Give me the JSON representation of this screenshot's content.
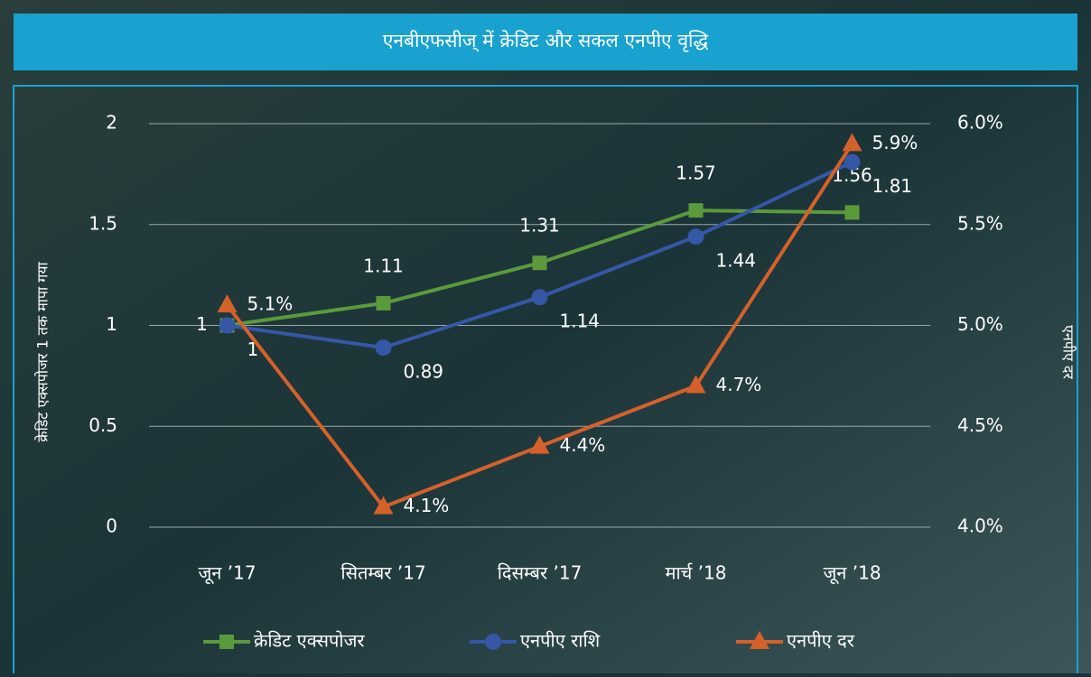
{
  "chart_data": {
    "type": "line",
    "title": "एनबीएफसीज् में क्रेडिट और सकल एनपीए वृद्धि",
    "y_label": "क्रेडिट एक्सपोजर 1 तक मापा गया",
    "y2_label": "एनपीए दर",
    "categories": [
      "जून ’17",
      "सितम्बर ’17",
      "दिसम्बर ’17",
      "मार्च ’18",
      "जून ’18"
    ],
    "series": [
      {
        "name": "क्रेडिट एक्सपोजर",
        "color": "#5b9a3b",
        "marker": "square",
        "values": [
          1,
          1.11,
          1.31,
          1.57,
          1.56
        ]
      },
      {
        "name": "एनपीए राशि",
        "color": "#3557a6",
        "marker": "circle",
        "values": [
          1,
          0.89,
          1.14,
          1.44,
          1.81
        ]
      },
      {
        "name": "एनपीए दर",
        "color": "#d5612a",
        "marker": "triangle",
        "axis": "y2",
        "values": [
          5.1,
          4.1,
          4.4,
          4.7,
          5.9
        ],
        "value_labels": [
          "5.1%",
          "4.1%",
          "4.4%",
          "4.7%",
          "5.9%"
        ]
      }
    ],
    "ylim": [
      0,
      2
    ],
    "yticks": [
      0,
      0.5,
      1,
      1.5,
      2
    ],
    "y2lim": [
      4,
      6
    ],
    "y2ticks": [
      {
        "value": 4,
        "label": "4.0%"
      },
      {
        "value": 4.5,
        "label": "4.5%"
      },
      {
        "value": 5,
        "label": "5.0%"
      },
      {
        "value": 5.5,
        "label": "5.5%"
      },
      {
        "value": 6,
        "label": "6.0%"
      }
    ],
    "grid": true,
    "legend": "bottom"
  }
}
